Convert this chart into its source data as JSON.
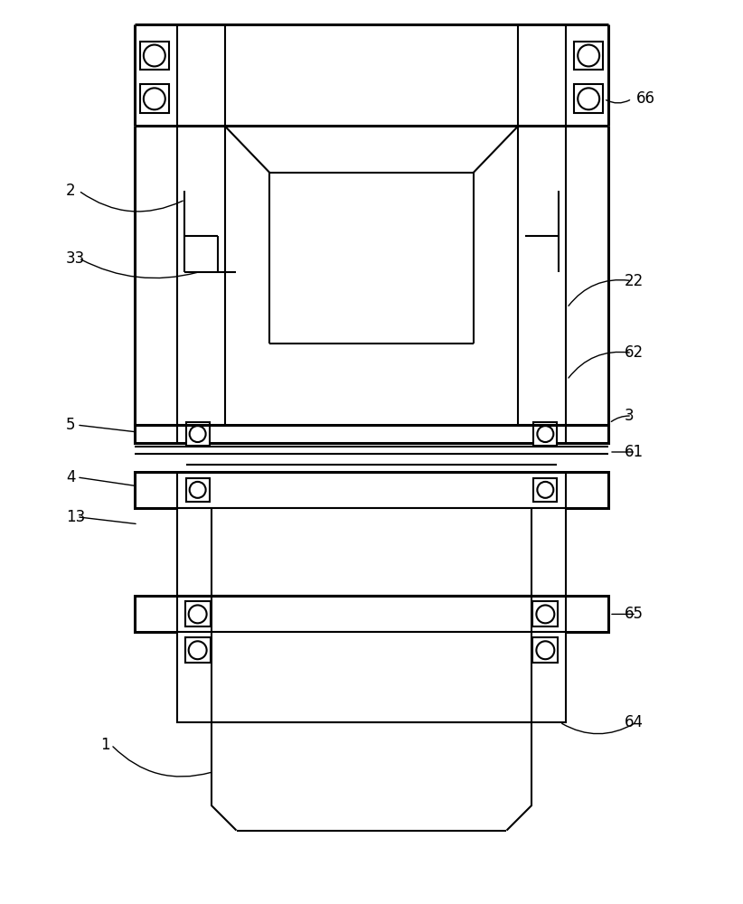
{
  "bg_color": "#ffffff",
  "line_color": "#000000",
  "lw": 1.5,
  "tlw": 2.2,
  "fig_width": 8.22,
  "fig_height": 10.0
}
